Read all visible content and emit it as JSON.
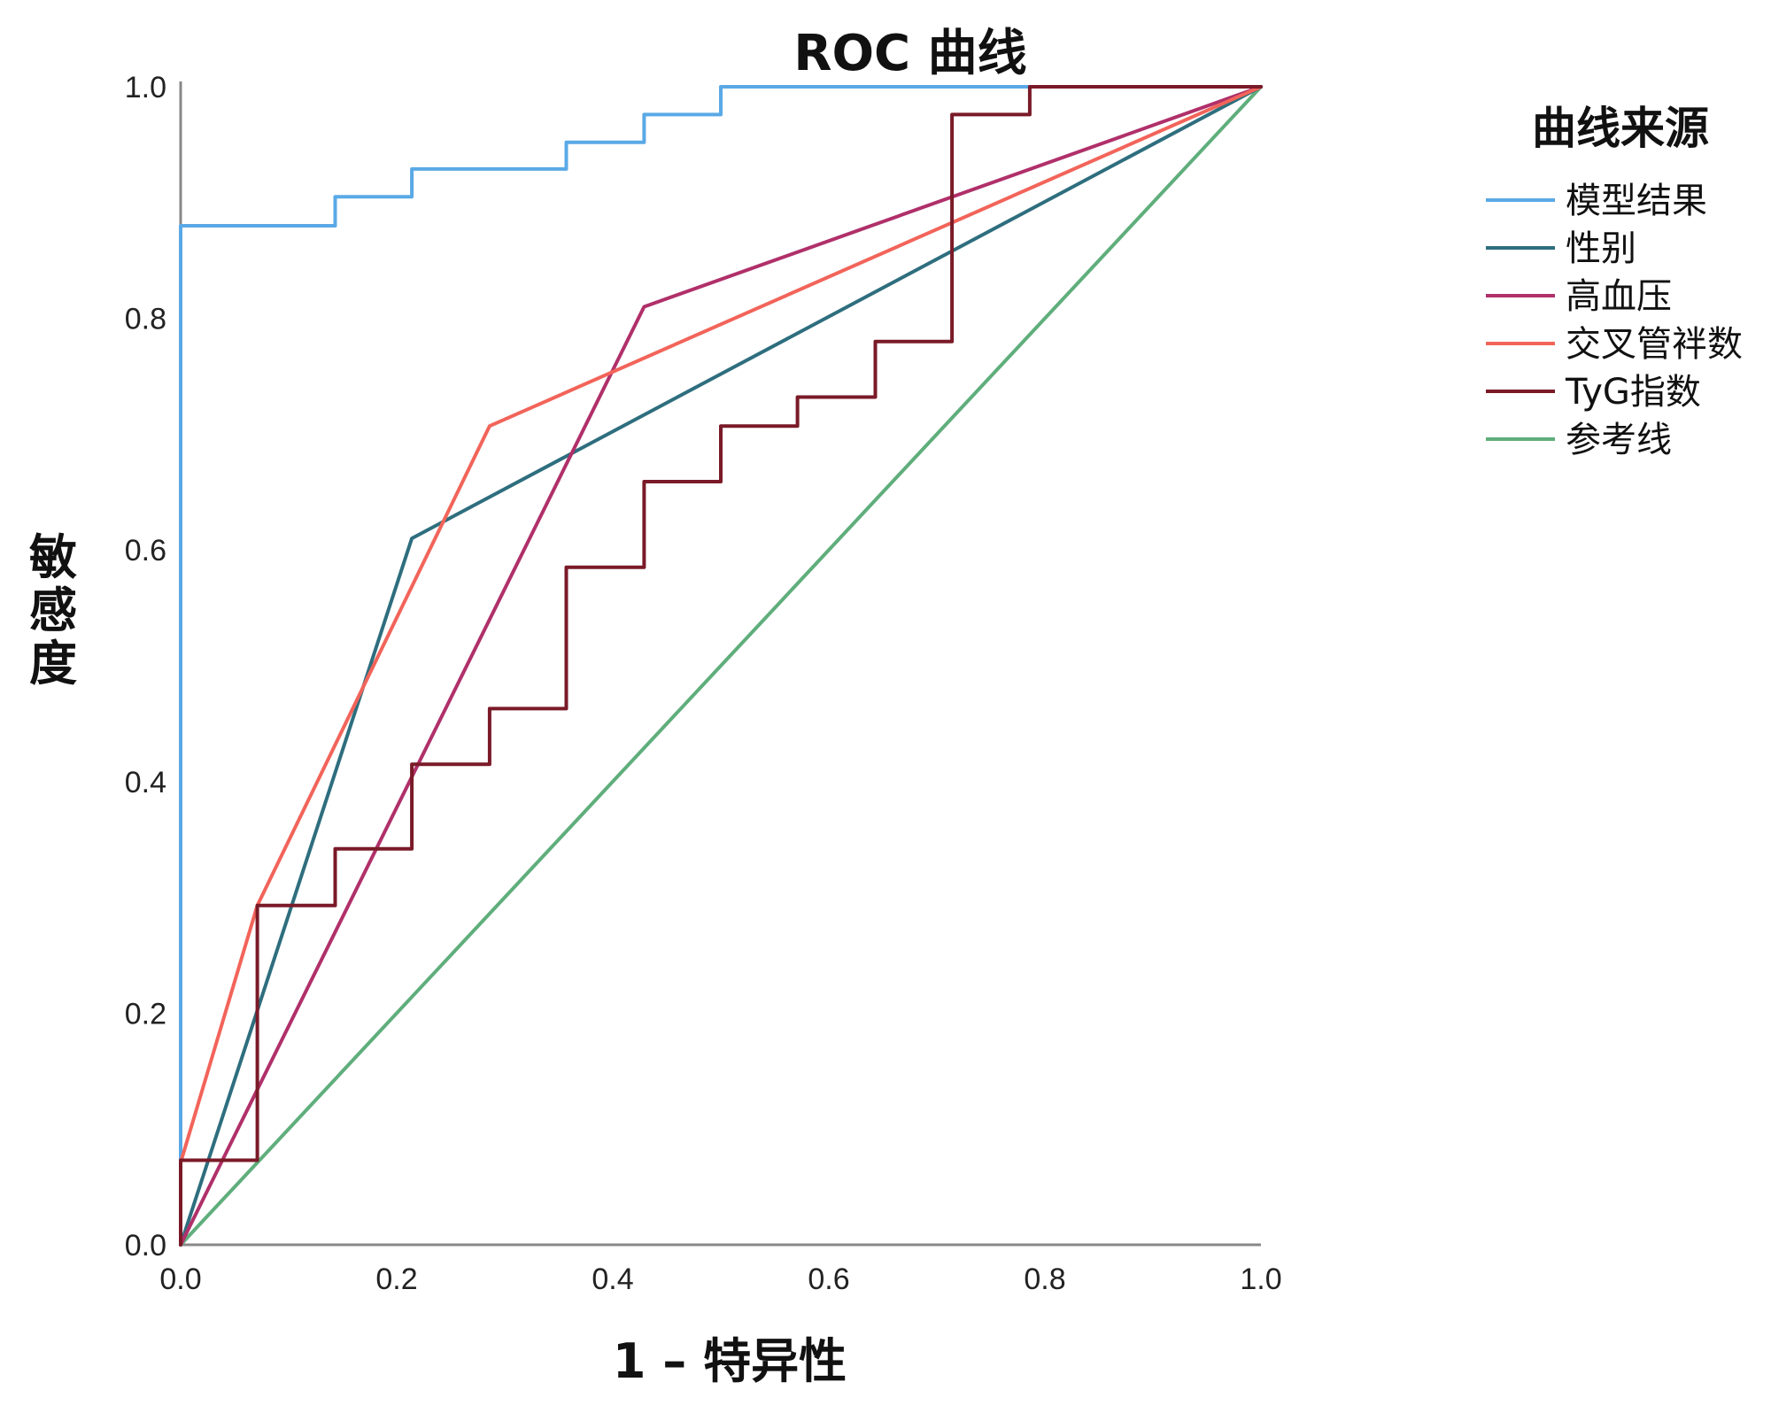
{
  "chart_data": {
    "type": "line",
    "title": "ROC 曲线",
    "xlabel": "1 – 特异性",
    "ylabel": "敏感度",
    "xlim": [
      0,
      1
    ],
    "ylim": [
      0,
      1
    ],
    "x_ticks": [
      "0.0",
      "0.2",
      "0.4",
      "0.6",
      "0.8",
      "1.0"
    ],
    "y_ticks": [
      "0.0",
      "0.2",
      "0.4",
      "0.6",
      "0.8",
      "1.0"
    ],
    "grid": false,
    "legend_title": "曲线来源",
    "legend_position": "right",
    "series": [
      {
        "name": "模型结果",
        "color": "#5aa9e6",
        "x": [
          0,
          0,
          0.143,
          0.143,
          0.214,
          0.214,
          0.357,
          0.357,
          0.429,
          0.429,
          0.5,
          0.5,
          1
        ],
        "y": [
          0,
          0.88,
          0.88,
          0.905,
          0.905,
          0.929,
          0.929,
          0.952,
          0.952,
          0.976,
          0.976,
          1,
          1
        ]
      },
      {
        "name": "性别",
        "color": "#2e6e7e",
        "x": [
          0,
          0.214,
          1
        ],
        "y": [
          0,
          0.61,
          1
        ]
      },
      {
        "name": "高血压",
        "color": "#b0306a",
        "x": [
          0,
          0.429,
          1
        ],
        "y": [
          0,
          0.81,
          1
        ]
      },
      {
        "name": "交叉管袢数",
        "color": "#f2645a",
        "x": [
          0,
          0,
          0.071,
          0.286,
          1
        ],
        "y": [
          0,
          0.071,
          0.293,
          0.707,
          1
        ]
      },
      {
        "name": "TyG指数",
        "color": "#7a1a28",
        "x": [
          0,
          0,
          0.071,
          0.071,
          0.143,
          0.143,
          0.214,
          0.214,
          0.286,
          0.286,
          0.357,
          0.357,
          0.429,
          0.429,
          0.5,
          0.5,
          0.571,
          0.571,
          0.643,
          0.643,
          0.714,
          0.714,
          0.786,
          0.786,
          1
        ],
        "y": [
          0,
          0.073,
          0.073,
          0.293,
          0.293,
          0.342,
          0.342,
          0.415,
          0.415,
          0.463,
          0.463,
          0.585,
          0.585,
          0.659,
          0.659,
          0.707,
          0.707,
          0.732,
          0.732,
          0.78,
          0.78,
          0.976,
          0.976,
          1,
          1
        ]
      },
      {
        "name": "参考线",
        "color": "#5fae7c",
        "x": [
          0,
          1
        ],
        "y": [
          0,
          1
        ]
      }
    ]
  }
}
